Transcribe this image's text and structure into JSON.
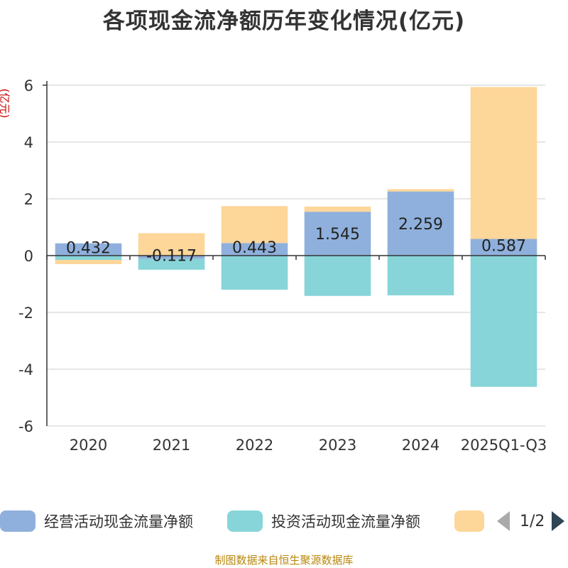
{
  "chart_data": {
    "type": "bar",
    "stacked": true,
    "title": "各项现金流净额历年变化情况(亿元)",
    "ylabel": "(亿元)",
    "ylim": [
      -6,
      6
    ],
    "yticks": [
      6,
      4,
      2,
      0,
      -2,
      -4,
      -6
    ],
    "categories": [
      "2020",
      "2021",
      "2022",
      "2023",
      "2024",
      "2025Q1-Q3"
    ],
    "series": [
      {
        "name": "经营活动现金流量净额",
        "color": "#8fb0dc",
        "values": [
          0.432,
          -0.117,
          0.443,
          1.545,
          2.259,
          0.587
        ],
        "labels": [
          "0.432",
          "-0.117",
          "0.443",
          "1.545",
          "2.259",
          "0.587"
        ]
      },
      {
        "name": "投资活动现金流量净额",
        "color": "#87d5d8",
        "values": [
          -0.15,
          -0.38,
          -1.2,
          -1.42,
          -1.4,
          -4.62
        ]
      },
      {
        "name": "",
        "color": "#fdd699",
        "values": [
          -0.15,
          0.79,
          1.3,
          0.18,
          0.08,
          5.35
        ]
      }
    ]
  },
  "legend": {
    "items": [
      {
        "label": "经营活动现金流量净额",
        "color": "#8fb0dc"
      },
      {
        "label": "投资活动现金流量净额",
        "color": "#87d5d8"
      },
      {
        "label": "",
        "color": "#fdd699"
      }
    ],
    "page": "1/2"
  },
  "source": "制图数据来自恒生聚源数据库"
}
